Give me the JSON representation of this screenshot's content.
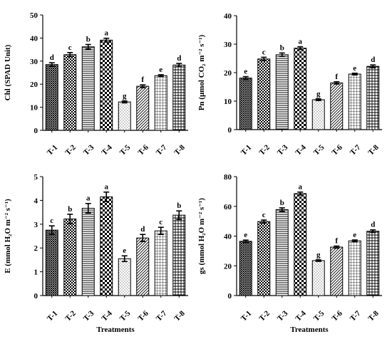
{
  "chart_data": [
    {
      "type": "bar",
      "ylabel": "Chl (SPAD Unit)",
      "xlabel": "",
      "ylim": [
        0,
        50
      ],
      "yticks": [
        0,
        10,
        20,
        30,
        40,
        50
      ],
      "categories": [
        "T-1",
        "T-2",
        "T-3",
        "T-4",
        "T-5",
        "T-6",
        "T-7",
        "T-8"
      ],
      "values": [
        28.5,
        32.8,
        36.2,
        39.1,
        12.3,
        19.1,
        23.7,
        28.3
      ],
      "errors": [
        0.8,
        0.9,
        1.0,
        0.8,
        0.4,
        0.6,
        0.4,
        0.7
      ],
      "letters": [
        "d",
        "c",
        "b",
        "a",
        "g",
        "f",
        "e",
        "d"
      ]
    },
    {
      "type": "bar",
      "ylabel": "Pn (μmol CO₂ m⁻² s⁻¹)",
      "xlabel": "",
      "ylim": [
        0,
        40
      ],
      "yticks": [
        0,
        10,
        20,
        30,
        40
      ],
      "categories": [
        "T-1",
        "T-2",
        "T-3",
        "T-4",
        "T-5",
        "T-6",
        "T-7",
        "T-8"
      ],
      "values": [
        18.1,
        24.8,
        26.3,
        28.6,
        10.5,
        16.4,
        19.5,
        22.2
      ],
      "errors": [
        0.5,
        0.6,
        0.6,
        0.5,
        0.3,
        0.4,
        0.3,
        0.5
      ],
      "letters": [
        "e",
        "c",
        "b",
        "a",
        "g",
        "f",
        "e",
        "d"
      ]
    },
    {
      "type": "bar",
      "ylabel": "E (mmol H₂O m⁻² s⁻¹)",
      "xlabel": "Treatments",
      "ylim": [
        0,
        5
      ],
      "yticks": [
        0,
        1,
        2,
        3,
        4,
        5
      ],
      "categories": [
        "T-1",
        "T-2",
        "T-3",
        "T-4",
        "T-5",
        "T-6",
        "T-7",
        "T-8"
      ],
      "values": [
        2.75,
        3.22,
        3.67,
        4.15,
        1.55,
        2.42,
        2.72,
        3.38
      ],
      "errors": [
        0.18,
        0.2,
        0.2,
        0.2,
        0.12,
        0.15,
        0.15,
        0.18
      ],
      "letters": [
        "c",
        "b",
        "a",
        "a",
        "e",
        "d",
        "c",
        "b"
      ]
    },
    {
      "type": "bar",
      "ylabel": "gs (mmol H₂O m⁻² s⁻¹)",
      "xlabel": "Treatments",
      "ylim": [
        0,
        80
      ],
      "yticks": [
        0,
        20,
        40,
        60,
        80
      ],
      "categories": [
        "T-1",
        "T-2",
        "T-3",
        "T-4",
        "T-5",
        "T-6",
        "T-7",
        "T-8"
      ],
      "values": [
        36.5,
        49.8,
        57.8,
        68.6,
        23.5,
        32.6,
        36.8,
        43.3
      ],
      "errors": [
        0.8,
        1.0,
        1.2,
        1.0,
        0.5,
        0.7,
        0.6,
        0.9
      ],
      "letters": [
        "e",
        "c",
        "b",
        "a",
        "g",
        "f",
        "e",
        "d"
      ]
    }
  ],
  "patterns": [
    "dense-hatch",
    "checker-small",
    "horizontal-stripes",
    "checker-large",
    "dots",
    "diagonal-stripes",
    "grid",
    "crosshatch"
  ]
}
